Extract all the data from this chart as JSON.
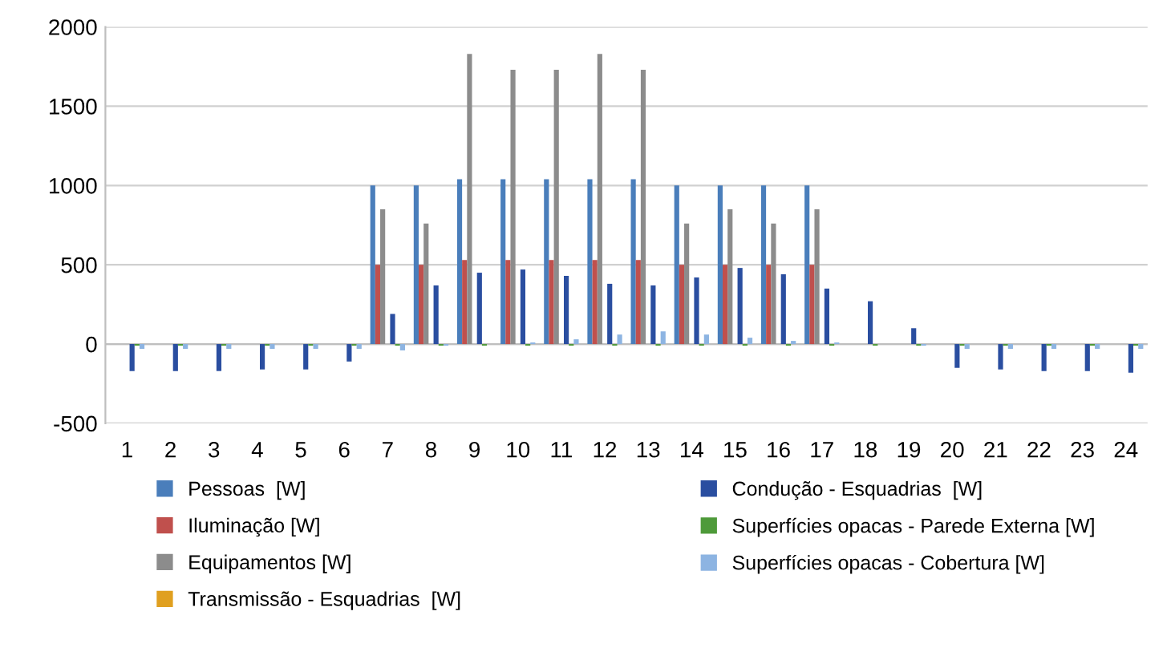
{
  "chart_data": {
    "type": "bar",
    "categories": [
      "1",
      "2",
      "3",
      "4",
      "5",
      "6",
      "7",
      "8",
      "9",
      "10",
      "11",
      "12",
      "13",
      "14",
      "15",
      "16",
      "17",
      "18",
      "19",
      "20",
      "21",
      "22",
      "23",
      "24"
    ],
    "series": [
      {
        "name": "Pessoas  [W]",
        "color": "#4a7ebb",
        "values": [
          0,
          0,
          0,
          0,
          0,
          0,
          1000,
          1000,
          1040,
          1040,
          1040,
          1040,
          1040,
          1000,
          1000,
          1000,
          1000,
          0,
          0,
          0,
          0,
          0,
          0,
          0
        ]
      },
      {
        "name": "Iluminação [W]",
        "color": "#c0504d",
        "values": [
          0,
          0,
          0,
          0,
          0,
          0,
          500,
          500,
          530,
          530,
          530,
          530,
          530,
          500,
          500,
          500,
          500,
          0,
          0,
          0,
          0,
          0,
          0,
          0
        ]
      },
      {
        "name": "Equipamentos [W]",
        "color": "#8c8c8c",
        "values": [
          0,
          0,
          0,
          0,
          0,
          0,
          850,
          760,
          1830,
          1730,
          1730,
          1830,
          1730,
          760,
          850,
          760,
          850,
          0,
          0,
          0,
          0,
          0,
          0,
          0
        ]
      },
      {
        "name": "Transmissão - Esquadrias  [W]",
        "color": "#e0a020",
        "values": [
          0,
          0,
          0,
          0,
          0,
          0,
          0,
          0,
          0,
          0,
          0,
          0,
          0,
          0,
          0,
          0,
          0,
          0,
          0,
          0,
          0,
          0,
          0,
          0
        ]
      },
      {
        "name": "Condução - Esquadrias  [W]",
        "color": "#2a4ea0",
        "values": [
          -170,
          -170,
          -170,
          -160,
          -160,
          -110,
          190,
          370,
          450,
          470,
          430,
          380,
          370,
          420,
          480,
          440,
          350,
          270,
          100,
          -150,
          -160,
          -170,
          -170,
          -180
        ]
      },
      {
        "name": "Superfícies opacas - Parede Externa [W]",
        "color": "#4e9a3a",
        "values": [
          -10,
          -10,
          -10,
          -10,
          -10,
          -10,
          -10,
          -10,
          -10,
          -10,
          -10,
          -10,
          -10,
          -10,
          -10,
          -10,
          -10,
          -10,
          -10,
          -10,
          -10,
          -10,
          -10,
          -10
        ]
      },
      {
        "name": "Superfícies opacas - Cobertura [W]",
        "color": "#8db4e2",
        "values": [
          -30,
          -30,
          -30,
          -30,
          -30,
          -30,
          -40,
          -10,
          0,
          10,
          30,
          60,
          80,
          60,
          40,
          20,
          10,
          0,
          -10,
          -30,
          -30,
          -30,
          -30,
          -30
        ]
      }
    ],
    "ylim": [
      -500,
      2000
    ],
    "yticks": [
      -500,
      0,
      500,
      1000,
      1500,
      2000
    ],
    "grid": "y",
    "legend": "bottom"
  }
}
